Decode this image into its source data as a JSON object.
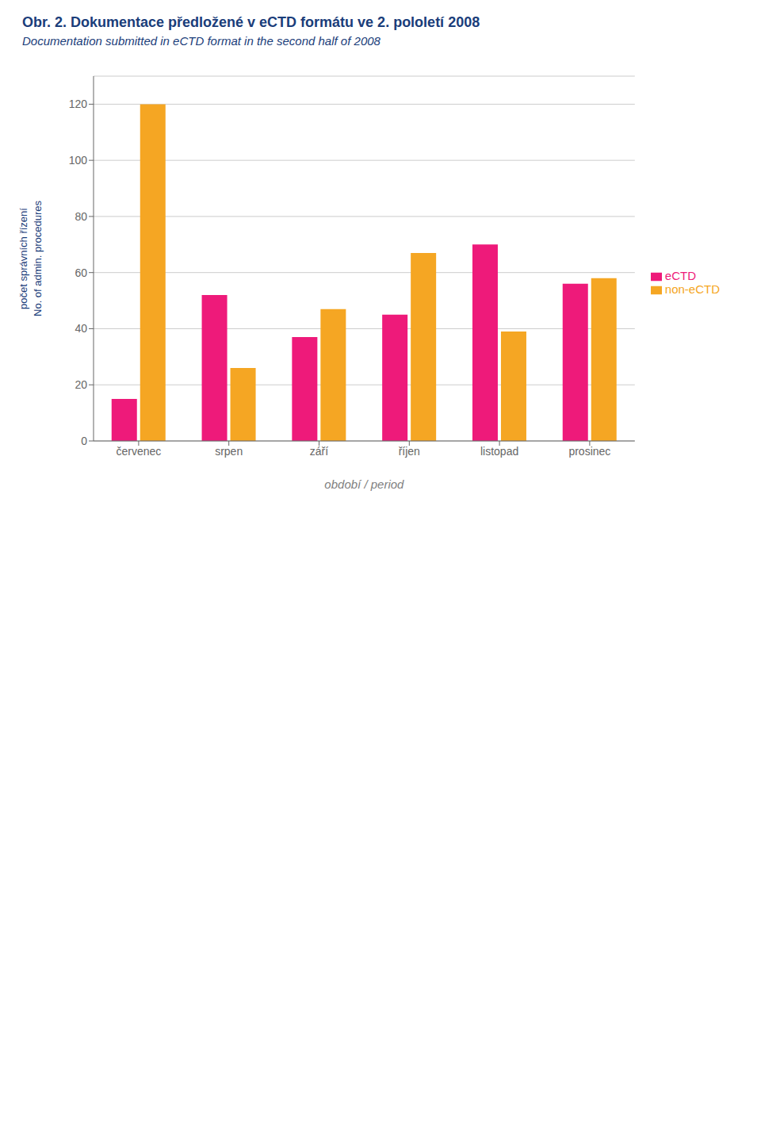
{
  "chart_data": {
    "type": "bar",
    "title": "Obr. 2.  Dokumentace předložené v eCTD formátu ve 2. pololetí 2008",
    "subtitle": "Documentation submitted in eCTD format in the second half of 2008",
    "xlabel": "období / period",
    "ylabel": "počet správních řízení\nNo. of admin. procedures",
    "categories": [
      "červenec",
      "srpen",
      "září",
      "říjen",
      "listopad",
      "prosinec"
    ],
    "series": [
      {
        "name": "eCTD",
        "color": "#EE1A7A",
        "values": [
          15,
          52,
          37,
          45,
          70,
          56
        ]
      },
      {
        "name": "non-eCTD",
        "color": "#F5A623",
        "values": [
          120,
          26,
          47,
          67,
          39,
          58
        ]
      }
    ],
    "ylim": [
      0,
      130
    ],
    "yticks": [
      0,
      20,
      40,
      60,
      80,
      100,
      120
    ],
    "grid": true,
    "legend": "right"
  }
}
